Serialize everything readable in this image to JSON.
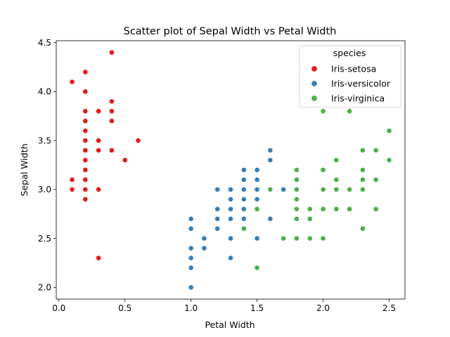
{
  "chart_data": {
    "type": "scatter",
    "title": "Scatter plot of Sepal Width vs Petal Width",
    "xlabel": "Petal Width",
    "ylabel": "Sepal Width",
    "xlim": [
      -0.02,
      2.62
    ],
    "ylim": [
      1.88,
      4.52
    ],
    "xticks": [
      0.0,
      0.5,
      1.0,
      1.5,
      2.0,
      2.5
    ],
    "xtick_labels": [
      "0.0",
      "0.5",
      "1.0",
      "1.5",
      "2.0",
      "2.5"
    ],
    "yticks": [
      2.0,
      2.5,
      3.0,
      3.5,
      4.0,
      4.5
    ],
    "ytick_labels": [
      "2.0",
      "2.5",
      "3.0",
      "3.5",
      "4.0",
      "4.5"
    ],
    "grid": false,
    "legend": {
      "title": "species",
      "position": "top-right"
    },
    "series": [
      {
        "name": "Iris-setosa",
        "color": "#e41a1c",
        "points": [
          [
            0.1,
            4.1
          ],
          [
            0.1,
            3.1
          ],
          [
            0.1,
            3.0
          ],
          [
            0.2,
            4.2
          ],
          [
            0.2,
            4.0
          ],
          [
            0.2,
            3.8
          ],
          [
            0.2,
            3.7
          ],
          [
            0.2,
            3.6
          ],
          [
            0.2,
            3.5
          ],
          [
            0.2,
            3.4
          ],
          [
            0.2,
            3.3
          ],
          [
            0.2,
            3.2
          ],
          [
            0.2,
            3.1
          ],
          [
            0.2,
            3.0
          ],
          [
            0.2,
            2.9
          ],
          [
            0.3,
            3.8
          ],
          [
            0.3,
            3.5
          ],
          [
            0.3,
            3.4
          ],
          [
            0.3,
            3.0
          ],
          [
            0.3,
            2.3
          ],
          [
            0.4,
            4.4
          ],
          [
            0.4,
            3.9
          ],
          [
            0.4,
            3.8
          ],
          [
            0.4,
            3.7
          ],
          [
            0.4,
            3.4
          ],
          [
            0.5,
            3.3
          ],
          [
            0.6,
            3.5
          ]
        ]
      },
      {
        "name": "Iris-versicolor",
        "color": "#377eb8",
        "points": [
          [
            1.0,
            2.7
          ],
          [
            1.0,
            2.6
          ],
          [
            1.0,
            2.4
          ],
          [
            1.0,
            2.3
          ],
          [
            1.0,
            2.2
          ],
          [
            1.0,
            2.0
          ],
          [
            1.1,
            2.5
          ],
          [
            1.1,
            2.4
          ],
          [
            1.2,
            3.0
          ],
          [
            1.2,
            2.8
          ],
          [
            1.2,
            2.7
          ],
          [
            1.2,
            2.6
          ],
          [
            1.3,
            3.0
          ],
          [
            1.3,
            2.9
          ],
          [
            1.3,
            2.8
          ],
          [
            1.3,
            2.7
          ],
          [
            1.3,
            2.5
          ],
          [
            1.3,
            2.3
          ],
          [
            1.4,
            3.2
          ],
          [
            1.4,
            3.1
          ],
          [
            1.4,
            3.0
          ],
          [
            1.4,
            2.9
          ],
          [
            1.4,
            2.8
          ],
          [
            1.4,
            2.7
          ],
          [
            1.5,
            3.2
          ],
          [
            1.5,
            3.1
          ],
          [
            1.5,
            3.0
          ],
          [
            1.5,
            2.9
          ],
          [
            1.5,
            2.8
          ],
          [
            1.5,
            2.5
          ],
          [
            1.6,
            3.4
          ],
          [
            1.6,
            3.3
          ],
          [
            1.6,
            2.7
          ],
          [
            1.7,
            3.0
          ],
          [
            1.8,
            3.2
          ]
        ]
      },
      {
        "name": "Iris-virginica",
        "color": "#4daf4a",
        "points": [
          [
            1.4,
            2.6
          ],
          [
            1.5,
            2.8
          ],
          [
            1.5,
            2.2
          ],
          [
            1.6,
            3.0
          ],
          [
            1.7,
            2.5
          ],
          [
            1.8,
            3.2
          ],
          [
            1.8,
            3.1
          ],
          [
            1.8,
            3.0
          ],
          [
            1.8,
            2.9
          ],
          [
            1.8,
            2.8
          ],
          [
            1.8,
            2.7
          ],
          [
            1.8,
            2.5
          ],
          [
            1.9,
            2.8
          ],
          [
            1.9,
            2.7
          ],
          [
            1.9,
            2.5
          ],
          [
            2.0,
            3.8
          ],
          [
            2.0,
            3.2
          ],
          [
            2.0,
            3.0
          ],
          [
            2.0,
            2.8
          ],
          [
            2.0,
            2.5
          ],
          [
            2.1,
            3.3
          ],
          [
            2.1,
            3.1
          ],
          [
            2.1,
            3.0
          ],
          [
            2.1,
            2.8
          ],
          [
            2.2,
            3.8
          ],
          [
            2.2,
            3.0
          ],
          [
            2.2,
            2.8
          ],
          [
            2.3,
            3.4
          ],
          [
            2.3,
            3.2
          ],
          [
            2.3,
            3.1
          ],
          [
            2.3,
            3.0
          ],
          [
            2.3,
            2.6
          ],
          [
            2.4,
            3.4
          ],
          [
            2.4,
            3.1
          ],
          [
            2.4,
            2.8
          ],
          [
            2.5,
            3.6
          ],
          [
            2.5,
            3.3
          ]
        ]
      }
    ]
  }
}
